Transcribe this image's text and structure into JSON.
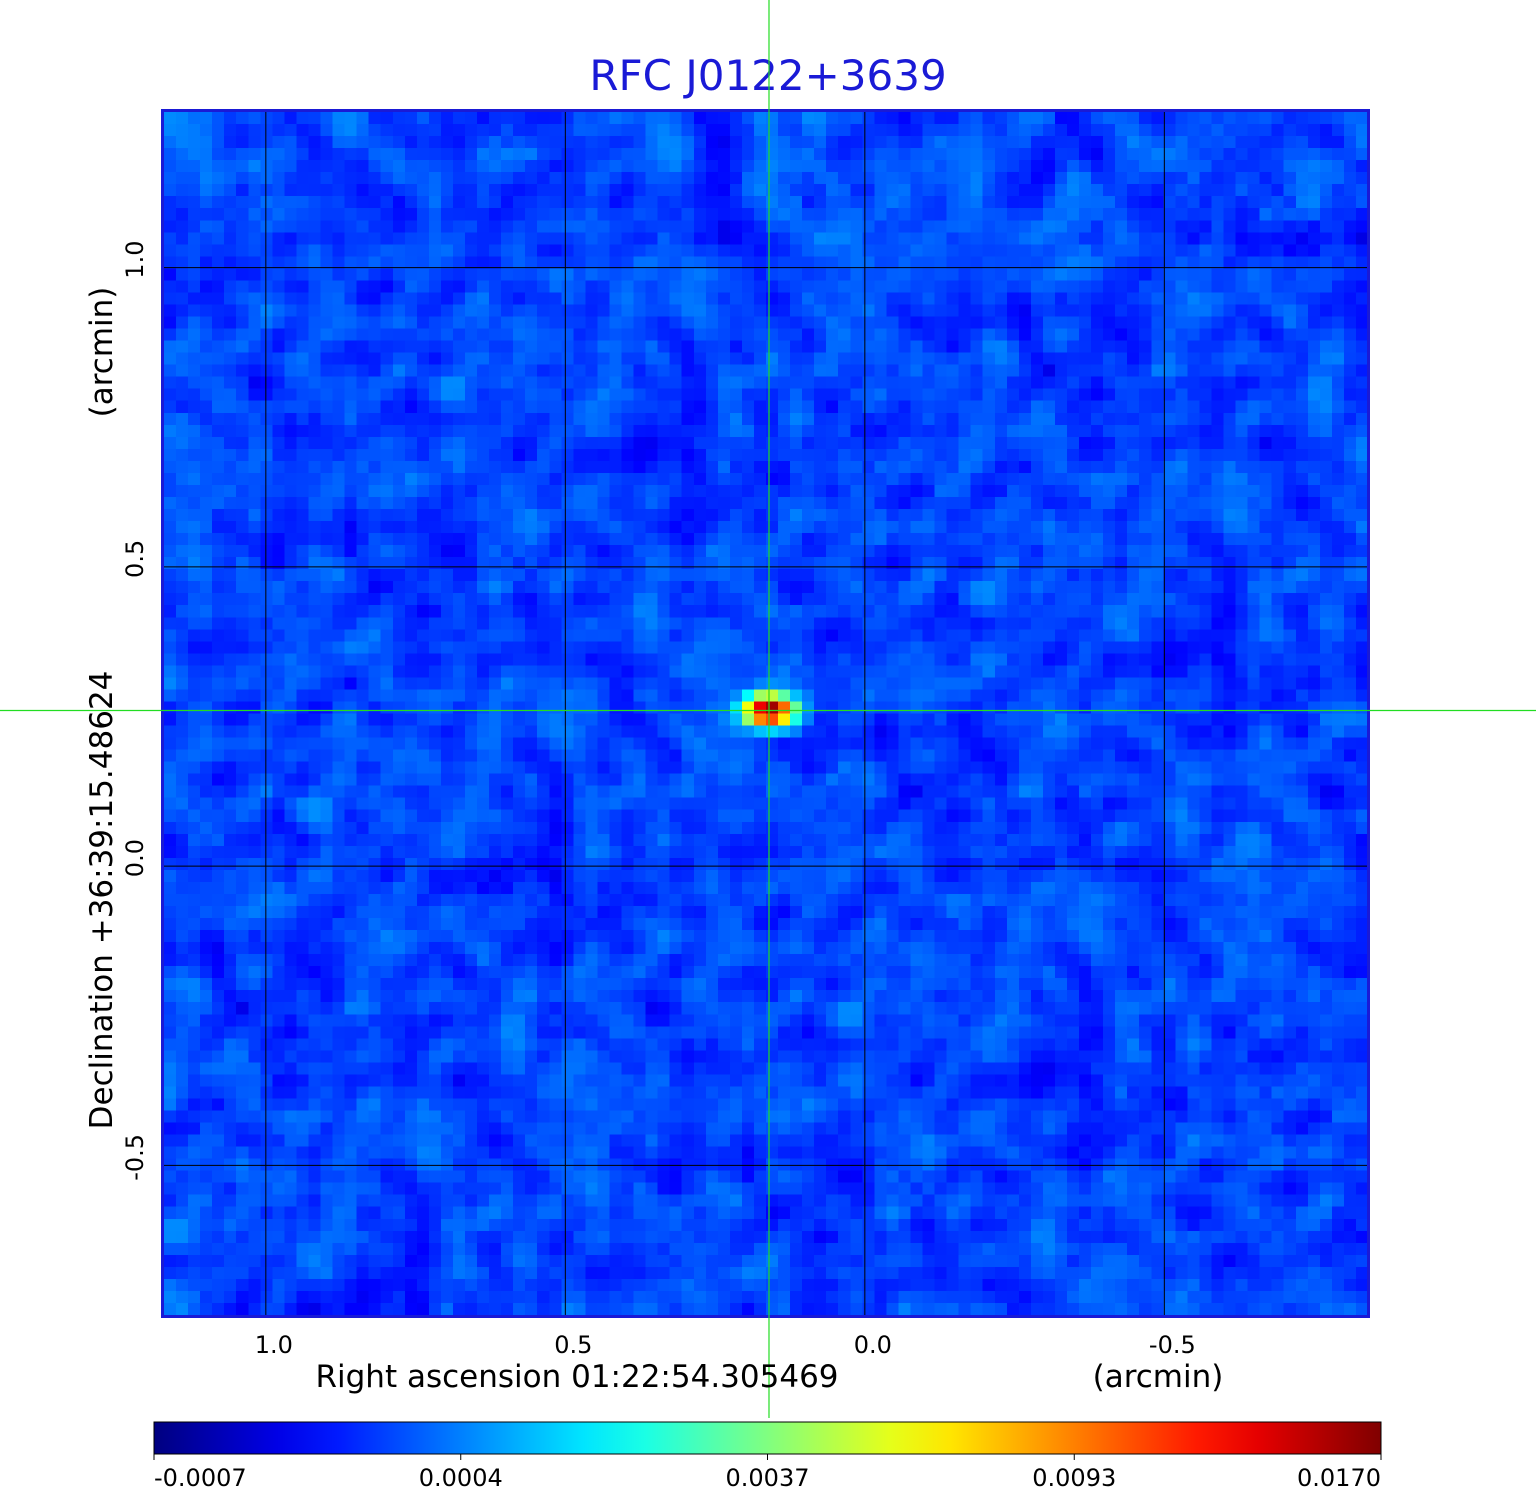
{
  "chart_data": {
    "type": "heatmap",
    "title": "RFC J0122+3639",
    "xlabel": "Right ascension  01:22:54.305469",
    "xunit": "(arcmin)",
    "ylabel": "Declination  +36:39:15.48624",
    "yunit": "(arcmin)",
    "x_ticks": [
      {
        "value": 1.0,
        "label": "1.0"
      },
      {
        "value": 0.5,
        "label": "0.5"
      },
      {
        "value": 0.0,
        "label": "0.0"
      },
      {
        "value": -0.5,
        "label": "-0.5"
      }
    ],
    "y_ticks": [
      {
        "value": 1.0,
        "label": "1.0"
      },
      {
        "value": 0.5,
        "label": "0.5"
      },
      {
        "value": 0.0,
        "label": "0.0"
      },
      {
        "value": -0.5,
        "label": "-0.5"
      }
    ],
    "xlim": [
      1.17,
      -0.84
    ],
    "ylim": [
      -0.75,
      1.26
    ],
    "x_reversed": true,
    "grid": true,
    "source": {
      "x": 0.16,
      "y": 0.26,
      "peak": 0.017,
      "sigma_x": 0.025,
      "sigma_y": 0.016
    },
    "background_level": 0.00015,
    "background_noise": 0.00022,
    "crosshair": {
      "x": 0.16,
      "y": 0.26,
      "color": "#22dd22"
    },
    "colormap": "jet",
    "colorbar": {
      "orientation": "horizontal",
      "tick_labels": [
        "-0.0007",
        "0.0004",
        "0.0037",
        "0.0093",
        "0.0170"
      ],
      "tick_values": [
        -0.0007,
        0.0004,
        0.0037,
        0.0093,
        0.017
      ]
    },
    "colors": {
      "title": "#1a1ad6",
      "frame": "#1a1ad6",
      "grid": "#000000"
    }
  }
}
